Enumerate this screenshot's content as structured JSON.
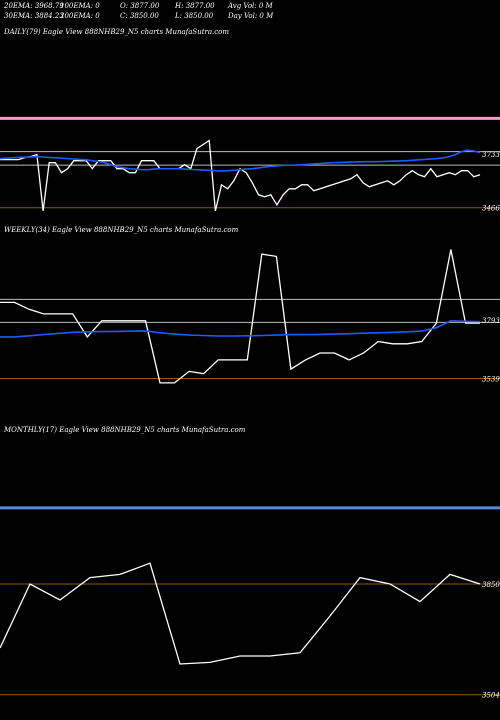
{
  "stats": {
    "line1": [
      "20EMA: 3968.79",
      "100EMA: 0",
      "O: 3877.00",
      "H: 3877.00",
      "Avg Vol: 0  M"
    ],
    "line2": [
      "30EMA: 3884.23",
      "200EMA: 0",
      "C: 3850.00",
      "L: 3850.00",
      "Day Vol: 0  M"
    ]
  },
  "colors": {
    "background": "#000000",
    "price": "#ffffff",
    "ema": "#1e5aff",
    "pink_line": "#ff99cc",
    "gray_line": "#bbbbbb",
    "level_line": "#8b5a14",
    "monthly_band": "#4f8dde"
  },
  "chart_data": [
    {
      "type": "line",
      "title": "DAILY(79) Eagle  View  888NHB29_N5 charts MunafaSutra.com",
      "ylim": [
        3380,
        4300
      ],
      "ticks": [
        {
          "value": 3733,
          "label": "3733"
        },
        {
          "value": 3466,
          "label": "3466"
        }
      ],
      "hlines": [
        {
          "value": 3910,
          "kind": "pink"
        },
        {
          "value": 3745,
          "kind": "gray"
        },
        {
          "value": 3678,
          "kind": "gray"
        },
        {
          "value": 3466,
          "kind": "level"
        }
      ],
      "series": [
        {
          "kind": "price",
          "values": [
            3705,
            3705,
            3705,
            3705,
            3715,
            3720,
            3730,
            3450,
            3690,
            3690,
            3640,
            3660,
            3700,
            3700,
            3700,
            3660,
            3700,
            3700,
            3700,
            3660,
            3660,
            3640,
            3640,
            3700,
            3700,
            3700,
            3660,
            3660,
            3660,
            3660,
            3680,
            3660,
            3760,
            3780,
            3800,
            3450,
            3580,
            3560,
            3600,
            3660,
            3640,
            3590,
            3530,
            3520,
            3530,
            3480,
            3530,
            3560,
            3560,
            3580,
            3580,
            3550,
            3560,
            3570,
            3580,
            3590,
            3600,
            3610,
            3630,
            3590,
            3570,
            3580,
            3590,
            3600,
            3580,
            3600,
            3630,
            3650,
            3630,
            3620,
            3660,
            3620,
            3630,
            3640,
            3630,
            3650,
            3650,
            3620,
            3630
          ]
        },
        {
          "kind": "ema",
          "values": [
            3710,
            3712,
            3714,
            3716,
            3717,
            3718,
            3720,
            3718,
            3716,
            3714,
            3712,
            3710,
            3708,
            3706,
            3704,
            3700,
            3696,
            3690,
            3680,
            3670,
            3665,
            3660,
            3658,
            3655,
            3655,
            3658,
            3660,
            3660,
            3660,
            3660,
            3658,
            3656,
            3655,
            3653,
            3652,
            3650,
            3648,
            3650,
            3652,
            3655,
            3658,
            3660,
            3664,
            3668,
            3672,
            3674,
            3676,
            3677,
            3678,
            3680,
            3682,
            3684,
            3686,
            3688,
            3690,
            3691,
            3692,
            3693,
            3694,
            3695,
            3695,
            3695,
            3696,
            3697,
            3698,
            3699,
            3700,
            3702,
            3704,
            3706,
            3708,
            3710,
            3714,
            3720,
            3730,
            3745,
            3752,
            3748,
            3740
          ]
        }
      ]
    },
    {
      "type": "line",
      "title": "WEEKLY(34) Eagle  View  888NHB29_N5 charts MunafaSutra.com",
      "ylim": [
        3350,
        4150
      ],
      "ticks": [
        {
          "value": 3793,
          "label": "3793"
        },
        {
          "value": 3539,
          "label": "3539"
        }
      ],
      "hlines": [
        {
          "value": 3883,
          "kind": "gray"
        },
        {
          "value": 3783,
          "kind": "gray"
        },
        {
          "value": 3539,
          "kind": "level"
        }
      ],
      "series": [
        {
          "kind": "price",
          "values": [
            3870,
            3870,
            3840,
            3820,
            3820,
            3820,
            3720,
            3790,
            3790,
            3790,
            3790,
            3520,
            3520,
            3570,
            3560,
            3620,
            3620,
            3620,
            4080,
            4070,
            3580,
            3620,
            3650,
            3650,
            3620,
            3650,
            3700,
            3690,
            3690,
            3700,
            3780,
            4100,
            3780,
            3780
          ]
        },
        {
          "kind": "ema",
          "values": [
            3720,
            3720,
            3725,
            3730,
            3735,
            3740,
            3742,
            3743,
            3744,
            3745,
            3746,
            3738,
            3732,
            3728,
            3726,
            3724,
            3724,
            3725,
            3726,
            3728,
            3730,
            3730,
            3731,
            3732,
            3734,
            3736,
            3738,
            3740,
            3742,
            3745,
            3760,
            3790,
            3788,
            3786
          ]
        }
      ]
    },
    {
      "type": "line",
      "title": "MONTHLY(17) Eagle  View  888NHB29_N5 charts MunafaSutra.com",
      "ylim": [
        3450,
        4300
      ],
      "ticks": [
        {
          "value": 3850,
          "label": "3850"
        },
        {
          "value": 3504,
          "label": "3504"
        }
      ],
      "hlines": [
        {
          "value": 4088,
          "kind": "band"
        },
        {
          "value": 3850,
          "kind": "level"
        },
        {
          "value": 3504,
          "kind": "level"
        }
      ],
      "series": [
        {
          "kind": "price",
          "values": [
            3650,
            3850,
            3800,
            3870,
            3880,
            3915,
            3600,
            3605,
            3625,
            3625,
            3635,
            3750,
            3870,
            3850,
            3795,
            3880,
            3850
          ]
        }
      ]
    }
  ]
}
